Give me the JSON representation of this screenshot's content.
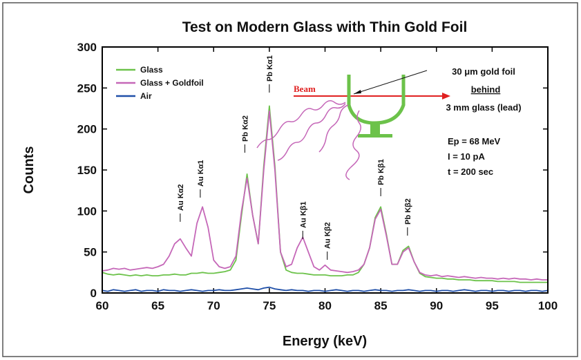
{
  "chart_data": {
    "type": "line",
    "title": "Test on Modern Glass with Thin Gold Foil",
    "xlabel": "Energy (keV)",
    "ylabel": "Counts",
    "x": [
      60,
      60.5,
      61,
      61.5,
      62,
      62.5,
      63,
      63.5,
      64,
      64.5,
      65,
      65.5,
      66,
      66.5,
      67,
      67.5,
      68,
      68.5,
      69,
      69.5,
      70,
      70.5,
      71,
      71.5,
      72,
      72.5,
      73,
      73.5,
      74,
      74.5,
      75,
      75.5,
      76,
      76.5,
      77,
      77.5,
      78,
      78.5,
      79,
      79.5,
      80,
      80.5,
      81,
      81.5,
      82,
      82.5,
      83,
      83.5,
      84,
      84.5,
      85,
      85.5,
      86,
      86.5,
      87,
      87.5,
      88,
      88.5,
      89,
      89.5,
      90,
      90.5,
      91,
      91.5,
      92,
      92.5,
      93,
      93.5,
      94,
      94.5,
      95,
      95.5,
      96,
      96.5,
      97,
      97.5,
      98,
      98.5,
      99,
      99.5,
      100
    ],
    "series": [
      {
        "name": "Glass",
        "color": "#6cc24a",
        "values": [
          25,
          23,
          22,
          23,
          22,
          21,
          22,
          21,
          22,
          21,
          21,
          22,
          22,
          23,
          22,
          22,
          24,
          24,
          25,
          24,
          24,
          25,
          26,
          28,
          40,
          95,
          145,
          95,
          60,
          155,
          228,
          155,
          50,
          28,
          25,
          24,
          24,
          23,
          22,
          22,
          22,
          21,
          21,
          21,
          22,
          22,
          25,
          35,
          55,
          92,
          105,
          72,
          35,
          35,
          52,
          57,
          38,
          24,
          20,
          19,
          18,
          18,
          17,
          17,
          16,
          16,
          16,
          15,
          15,
          15,
          15,
          14,
          14,
          14,
          14,
          13,
          13,
          13,
          13,
          13,
          13
        ]
      },
      {
        "name": "Glass + Goldfoil",
        "color": "#c567b8",
        "values": [
          27,
          28,
          30,
          29,
          30,
          28,
          29,
          30,
          31,
          30,
          32,
          35,
          45,
          60,
          66,
          55,
          45,
          85,
          105,
          80,
          40,
          32,
          30,
          32,
          45,
          100,
          140,
          95,
          60,
          150,
          222,
          150,
          50,
          32,
          35,
          55,
          68,
          50,
          32,
          28,
          34,
          28,
          27,
          26,
          25,
          26,
          28,
          35,
          55,
          90,
          102,
          70,
          35,
          35,
          50,
          55,
          38,
          25,
          22,
          21,
          22,
          20,
          21,
          20,
          19,
          20,
          19,
          18,
          19,
          18,
          18,
          17,
          18,
          17,
          18,
          17,
          17,
          16,
          17,
          16,
          16
        ]
      },
      {
        "name": "Air",
        "color": "#1f4fa8",
        "values": [
          3,
          2,
          4,
          3,
          2,
          3,
          4,
          2,
          3,
          3,
          2,
          4,
          3,
          3,
          2,
          3,
          4,
          3,
          2,
          3,
          3,
          4,
          3,
          3,
          4,
          5,
          6,
          5,
          4,
          6,
          7,
          5,
          4,
          3,
          4,
          3,
          3,
          2,
          3,
          3,
          2,
          3,
          4,
          3,
          2,
          3,
          3,
          2,
          3,
          4,
          3,
          3,
          2,
          3,
          3,
          4,
          3,
          2,
          3,
          3,
          2,
          3,
          3,
          2,
          3,
          4,
          3,
          2,
          3,
          3,
          2,
          3,
          3,
          2,
          3,
          3,
          2,
          3,
          3,
          2,
          3
        ]
      }
    ],
    "xlim": [
      60,
      100
    ],
    "xticks": [
      60,
      65,
      70,
      75,
      80,
      85,
      90,
      95,
      100
    ],
    "ylim": [
      0,
      300
    ],
    "yticks": [
      0,
      50,
      100,
      150,
      200,
      250,
      300
    ],
    "legend": "upper left",
    "peak_labels": [
      "Au Kα2",
      "Au Kα1",
      "Pb Kα2",
      "Pb Kα1",
      "Au Kβ1",
      "Au Kβ2",
      "Pb Kβ1",
      "Pb Kβ2"
    ],
    "inset": {
      "beam": "Beam",
      "foil": "30 μm gold foil",
      "behind": "behind",
      "glass": "3 mm glass (lead)"
    },
    "conditions": [
      "Ep = 68 MeV",
      "I = 10 pA",
      "t = 200 sec"
    ]
  }
}
